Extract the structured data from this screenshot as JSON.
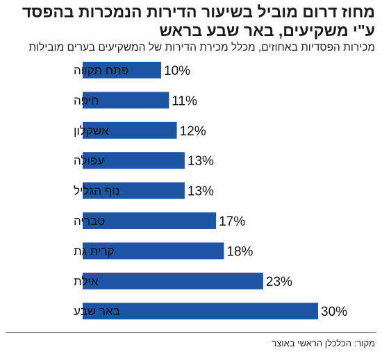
{
  "header": {
    "title": "מחוז דרום מוביל בשיעור הדירות הנמכרות בהפסד ע\"י משקיעים, באר שבע בראש",
    "subtitle": "מכירות הפסדיות באחוזים, מכלל מכירת הדירות של המשקיעים בערים מובילות"
  },
  "footer": {
    "source": "מקור: הכלכלן הראשי באוצר"
  },
  "chart_data": {
    "type": "bar",
    "orientation": "horizontal",
    "title": "מחוז דרום מוביל בשיעור הדירות הנמכרות בהפסד ע\"י משקיעים, באר שבע בראש",
    "subtitle": "מכירות הפסדיות באחוזים, מכלל מכירת הדירות של המשקיעים בערים מובילות",
    "categories": [
      "פתח תקווה",
      "חיפה",
      "אשקלון",
      "עפולה",
      "נוף הגליל",
      "טבריה",
      "קרית גת",
      "אילת",
      "באר שבע"
    ],
    "values": [
      10,
      11,
      12,
      13,
      13,
      17,
      18,
      23,
      30
    ],
    "value_labels": [
      "10%",
      "11%",
      "12%",
      "13%",
      "13%",
      "17%",
      "18%",
      "23%",
      "30%"
    ],
    "unit": "%",
    "xlim": [
      0,
      30
    ],
    "grid": false,
    "legend": "none",
    "bar_color": "#1c55a3"
  }
}
